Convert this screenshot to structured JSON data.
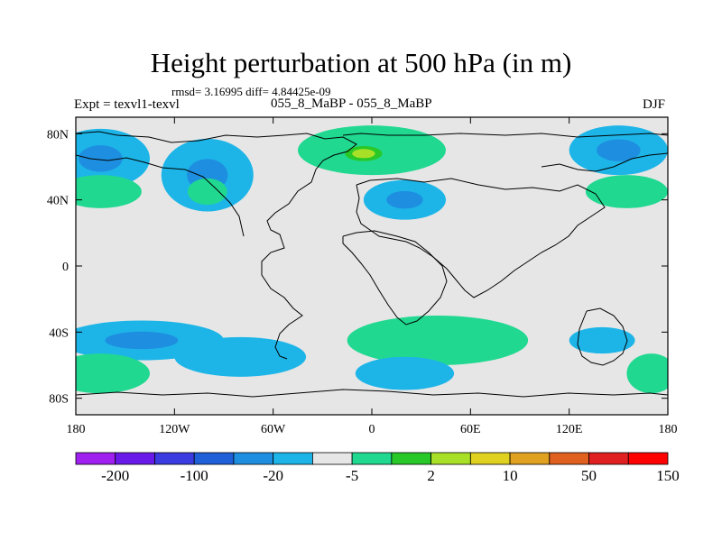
{
  "title": "Height perturbation at 500 hPa (in m)",
  "stats": "rmsd= 3.16995 diff= 4.84425e-09",
  "left_label": "Expt = texvl1-texvl",
  "center_label": "055_8_MaBP - 055_8_MaBP",
  "right_label": "DJF",
  "chart_data": {
    "type": "heatmap",
    "title": "Height perturbation at 500 hPa (in m)",
    "xlabel": "",
    "ylabel": "",
    "xlim": [
      -180,
      180
    ],
    "ylim": [
      -90,
      90
    ],
    "x_ticks": [
      {
        "value": -180,
        "label": "180"
      },
      {
        "value": -120,
        "label": "120W"
      },
      {
        "value": -60,
        "label": "60W"
      },
      {
        "value": 0,
        "label": "0"
      },
      {
        "value": 60,
        "label": "60E"
      },
      {
        "value": 120,
        "label": "120E"
      },
      {
        "value": 180,
        "label": "180"
      }
    ],
    "y_ticks": [
      {
        "value": 80,
        "label": "80N"
      },
      {
        "value": 40,
        "label": "40N"
      },
      {
        "value": 0,
        "label": "0"
      },
      {
        "value": -40,
        "label": "40S"
      },
      {
        "value": -80,
        "label": "80S"
      }
    ],
    "colorbar": {
      "colors": [
        "#a020f0",
        "#6a1ae8",
        "#3a3ce0",
        "#1f5fd8",
        "#1e8fe0",
        "#1db5e8",
        "#e6e6e6",
        "#20d890",
        "#28c828",
        "#a8e028",
        "#e0d020",
        "#e0a020",
        "#e06020",
        "#e02020",
        "#ff0000"
      ],
      "labeled_ticks": [
        {
          "after_index": 0,
          "label": "-200"
        },
        {
          "after_index": 2,
          "label": "-100"
        },
        {
          "after_index": 4,
          "label": "-20"
        },
        {
          "after_index": 6,
          "label": "-5"
        },
        {
          "after_index": 8,
          "label": "2"
        },
        {
          "after_index": 10,
          "label": "10"
        },
        {
          "after_index": 12,
          "label": "50"
        },
        {
          "after_index": 14,
          "label": "150"
        }
      ]
    },
    "anomalies": [
      {
        "lon": -165,
        "lat": 65,
        "rx": 30,
        "ry": 18,
        "level": -3
      },
      {
        "lon": -165,
        "lat": 45,
        "rx": 25,
        "ry": 10,
        "level": 2
      },
      {
        "lon": -100,
        "lat": 55,
        "rx": 28,
        "ry": 22,
        "level": -3
      },
      {
        "lon": -100,
        "lat": 45,
        "rx": 12,
        "ry": 8,
        "level": 2
      },
      {
        "lon": 0,
        "lat": 70,
        "rx": 45,
        "ry": 15,
        "level": 2
      },
      {
        "lon": -5,
        "lat": 68,
        "rx": 20,
        "ry": 8,
        "level": 4
      },
      {
        "lon": 20,
        "lat": 40,
        "rx": 25,
        "ry": 12,
        "level": -3
      },
      {
        "lon": 150,
        "lat": 70,
        "rx": 30,
        "ry": 15,
        "level": -3
      },
      {
        "lon": 155,
        "lat": 45,
        "rx": 25,
        "ry": 10,
        "level": 2
      },
      {
        "lon": -140,
        "lat": -45,
        "rx": 50,
        "ry": 12,
        "level": -3
      },
      {
        "lon": -165,
        "lat": -65,
        "rx": 30,
        "ry": 12,
        "level": 2
      },
      {
        "lon": -80,
        "lat": -55,
        "rx": 40,
        "ry": 12,
        "level": -2
      },
      {
        "lon": 40,
        "lat": -45,
        "rx": 55,
        "ry": 15,
        "level": 2
      },
      {
        "lon": 20,
        "lat": -65,
        "rx": 30,
        "ry": 10,
        "level": -2
      },
      {
        "lon": 140,
        "lat": -45,
        "rx": 20,
        "ry": 8,
        "level": -2
      },
      {
        "lon": 170,
        "lat": -65,
        "rx": 15,
        "ry": 12,
        "level": 2
      }
    ]
  }
}
